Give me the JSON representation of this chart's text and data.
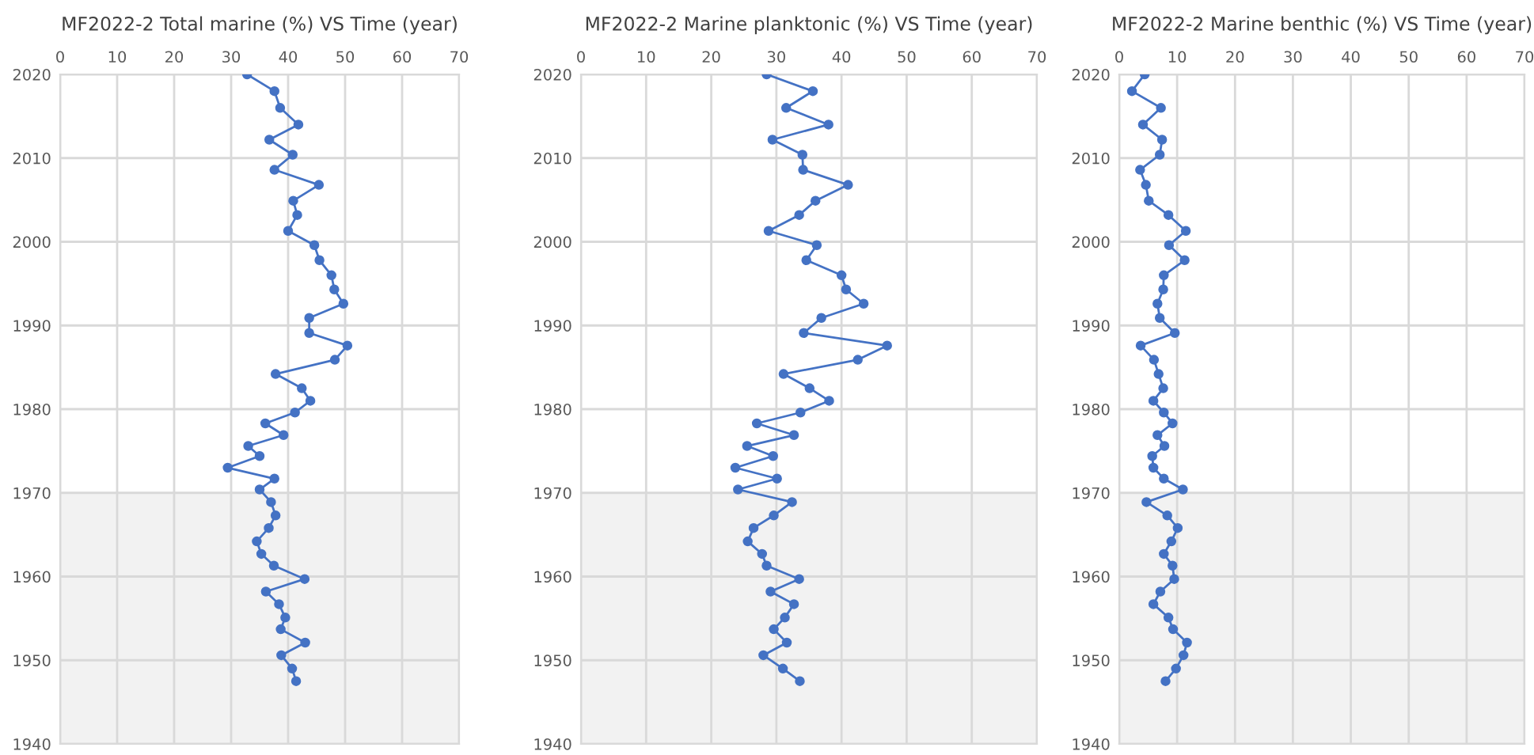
{
  "chart_data": [
    {
      "type": "line",
      "title": "MF2022-2 Total marine (%) VS Time (year)",
      "marker": "circle",
      "grid": true,
      "xlim": [
        0,
        70
      ],
      "xticks": [
        0,
        10,
        20,
        30,
        40,
        50,
        60,
        70
      ],
      "ylim": [
        1940,
        2020
      ],
      "yticks": [
        1940,
        1950,
        1960,
        1970,
        1980,
        1990,
        2000,
        2010,
        2020
      ],
      "bands": [
        {
          "axis": "y",
          "from": 1940,
          "to": 1970,
          "color": "#f2f2f2"
        }
      ],
      "series": [
        {
          "color": "#4472c4",
          "x": [
            32.8,
            37.6,
            38.6,
            41.8,
            36.7,
            40.8,
            37.6,
            45.4,
            40.9,
            41.6,
            40.0,
            44.6,
            45.5,
            47.6,
            48.1,
            49.7,
            43.7,
            43.7,
            50.4,
            48.2,
            37.8,
            42.4,
            43.9,
            41.2,
            36.0,
            39.2,
            33.0,
            35.0,
            29.4,
            37.6,
            35.0,
            37.0,
            37.8,
            36.6,
            34.5,
            35.3,
            37.5,
            42.9,
            36.1,
            38.4,
            39.5,
            38.7,
            43.0,
            38.8,
            40.7,
            41.4
          ],
          "values": [
            2020,
            2018.0,
            2016.0,
            2014.0,
            2012.2,
            2010.4,
            2008.6,
            2006.8,
            2004.9,
            2003.2,
            2001.3,
            1999.6,
            1997.8,
            1996.0,
            1994.3,
            1992.6,
            1990.9,
            1989.1,
            1987.6,
            1985.9,
            1984.2,
            1982.5,
            1981.0,
            1979.6,
            1978.3,
            1976.9,
            1975.6,
            1974.4,
            1973.0,
            1971.7,
            1970.4,
            1968.9,
            1967.3,
            1965.8,
            1964.2,
            1962.7,
            1961.3,
            1959.7,
            1958.2,
            1956.7,
            1955.1,
            1953.7,
            1952.1,
            1950.6,
            1949.0,
            1947.5
          ]
        }
      ]
    },
    {
      "type": "line",
      "title": "MF2022-2 Marine planktonic (%) VS Time (year)",
      "marker": "circle",
      "grid": true,
      "xlim": [
        0,
        70
      ],
      "xticks": [
        0,
        10,
        20,
        30,
        40,
        50,
        60,
        70
      ],
      "ylim": [
        1940,
        2020
      ],
      "yticks": [
        1940,
        1950,
        1960,
        1970,
        1980,
        1990,
        2000,
        2010,
        2020
      ],
      "bands": [
        {
          "axis": "y",
          "from": 1940,
          "to": 1970,
          "color": "#f2f2f2"
        }
      ],
      "series": [
        {
          "color": "#4472c4",
          "x": [
            28.5,
            35.6,
            31.5,
            38.0,
            29.4,
            34.0,
            34.1,
            41.0,
            36.0,
            33.5,
            28.8,
            36.2,
            34.6,
            40.0,
            40.7,
            43.4,
            36.9,
            34.2,
            47.0,
            42.5,
            31.1,
            35.1,
            38.1,
            33.7,
            27.0,
            32.7,
            25.5,
            29.5,
            23.7,
            30.1,
            24.1,
            32.4,
            29.6,
            26.5,
            25.6,
            27.8,
            28.5,
            33.5,
            29.1,
            32.7,
            31.3,
            29.6,
            31.6,
            28.0,
            31.0,
            33.6
          ],
          "values": [
            2020,
            2018.0,
            2016.0,
            2014.0,
            2012.2,
            2010.4,
            2008.6,
            2006.8,
            2004.9,
            2003.2,
            2001.3,
            1999.6,
            1997.8,
            1996.0,
            1994.3,
            1992.6,
            1990.9,
            1989.1,
            1987.6,
            1985.9,
            1984.2,
            1982.5,
            1981.0,
            1979.6,
            1978.3,
            1976.9,
            1975.6,
            1974.4,
            1973.0,
            1971.7,
            1970.4,
            1968.9,
            1967.3,
            1965.8,
            1964.2,
            1962.7,
            1961.3,
            1959.7,
            1958.2,
            1956.7,
            1955.1,
            1953.7,
            1952.1,
            1950.6,
            1949.0,
            1947.5
          ]
        }
      ]
    },
    {
      "type": "line",
      "title": "MF2022-2 Marine benthic (%) VS Time (year)",
      "marker": "circle",
      "grid": true,
      "xlim": [
        0,
        70
      ],
      "xticks": [
        0,
        10,
        20,
        30,
        40,
        50,
        60,
        70
      ],
      "ylim": [
        1940,
        2020
      ],
      "yticks": [
        1940,
        1950,
        1960,
        1970,
        1980,
        1990,
        2000,
        2010,
        2020
      ],
      "bands": [
        {
          "axis": "y",
          "from": 1940,
          "to": 1970,
          "color": "#f2f2f2"
        }
      ],
      "series": [
        {
          "color": "#4472c4",
          "x": [
            4.4,
            2.2,
            7.2,
            4.1,
            7.4,
            7.0,
            3.6,
            4.6,
            5.1,
            8.5,
            11.5,
            8.6,
            11.3,
            7.7,
            7.6,
            6.6,
            7.0,
            9.6,
            3.7,
            6.0,
            6.8,
            7.6,
            5.9,
            7.7,
            9.2,
            6.6,
            7.8,
            5.7,
            5.9,
            7.7,
            11.0,
            4.7,
            8.3,
            10.1,
            9.0,
            7.7,
            9.2,
            9.5,
            7.1,
            5.9,
            8.5,
            9.3,
            11.7,
            11.1,
            9.8,
            8.0
          ],
          "values": [
            2020,
            2018.0,
            2016.0,
            2014.0,
            2012.2,
            2010.4,
            2008.6,
            2006.8,
            2004.9,
            2003.2,
            2001.3,
            1999.6,
            1997.8,
            1996.0,
            1994.3,
            1992.6,
            1990.9,
            1989.1,
            1987.6,
            1985.9,
            1984.2,
            1982.5,
            1981.0,
            1979.6,
            1978.3,
            1976.9,
            1975.6,
            1974.4,
            1973.0,
            1971.7,
            1970.4,
            1968.9,
            1967.3,
            1965.8,
            1964.2,
            1962.7,
            1961.3,
            1959.7,
            1958.2,
            1956.7,
            1955.1,
            1953.7,
            1952.1,
            1950.6,
            1949.0,
            1947.5
          ]
        }
      ]
    }
  ]
}
